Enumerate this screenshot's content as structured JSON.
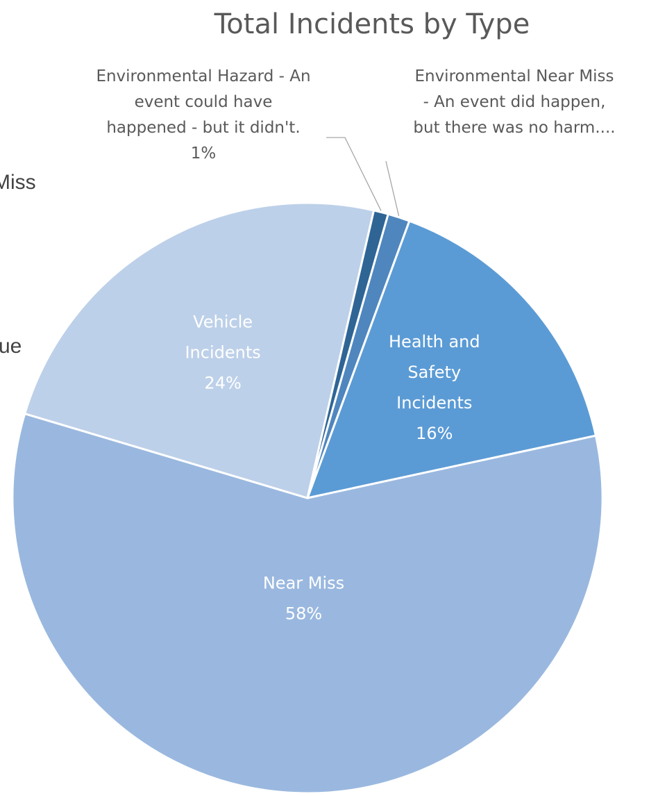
{
  "background_text": {
    "line1": "Miss",
    "line2": "ue"
  },
  "chart_data": {
    "type": "pie",
    "title": "Total Incidents by Type",
    "slices": [
      {
        "label": "Health and Safety Incidents",
        "label_lines": [
          "Health and",
          "Safety",
          "Incidents"
        ],
        "value": 16,
        "pct_label": "16%",
        "color": "#5B9BD5",
        "label_position": "inside"
      },
      {
        "label": "Near Miss",
        "label_lines": [
          "Near Miss"
        ],
        "value": 58,
        "pct_label": "58%",
        "color": "#9AB8DF",
        "label_position": "inside"
      },
      {
        "label": "Vehicle Incidents",
        "label_lines": [
          "Vehicle",
          "Incidents"
        ],
        "value": 24,
        "pct_label": "24%",
        "color": "#BDD0E9",
        "label_position": "inside"
      },
      {
        "label": "Environmental Hazard - An event could have happened - but it didn't.",
        "label_lines": [
          "Environmental Hazard - An",
          "event could have",
          "happened - but it didn't."
        ],
        "value": 0.8,
        "pct_label": "1%",
        "color": "#2F6595",
        "label_position": "outside-left"
      },
      {
        "label": "Environmental Near Miss - An event did happen, but there was no harm....",
        "label_lines": [
          "Environmental Near Miss",
          "- An event did happen,",
          "but there was no harm...."
        ],
        "value": 1.2,
        "pct_label": "",
        "color": "#4F86BE",
        "label_position": "outside-right"
      }
    ],
    "start_angle_deg": 20.2,
    "direction": "clockwise",
    "legend": "none"
  }
}
